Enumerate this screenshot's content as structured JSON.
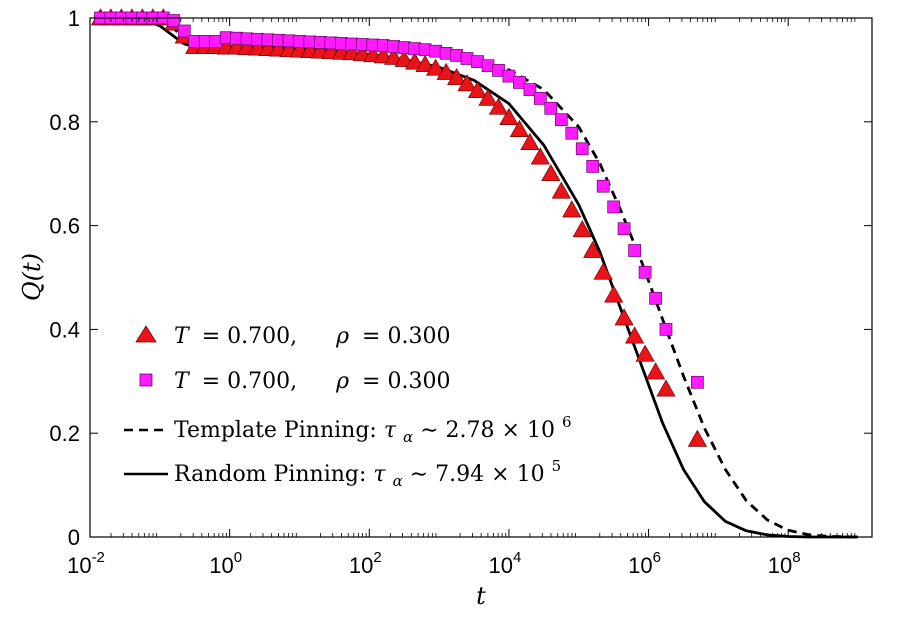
{
  "chart_data": {
    "type": "scatter",
    "xscale": "log",
    "xlim_log10": [
      -2,
      9.2
    ],
    "ylim": [
      0,
      1
    ],
    "xlabel": "t",
    "ylabel": "Q(t)",
    "x_ticks": [
      {
        "base": "10",
        "exp": "-2",
        "log10": -2
      },
      {
        "base": "10",
        "exp": "0",
        "log10": 0
      },
      {
        "base": "10",
        "exp": "2",
        "log10": 2
      },
      {
        "base": "10",
        "exp": "4",
        "log10": 4
      },
      {
        "base": "10",
        "exp": "6",
        "log10": 6
      },
      {
        "base": "10",
        "exp": "8",
        "log10": 8
      }
    ],
    "y_ticks": [
      {
        "label": "0",
        "value": 0
      },
      {
        "label": "0.2",
        "value": 0.2
      },
      {
        "label": "0.4",
        "value": 0.4
      },
      {
        "label": "0.6",
        "value": 0.6
      },
      {
        "label": "0.8",
        "value": 0.8
      },
      {
        "label": "1",
        "value": 1
      }
    ],
    "series": [
      {
        "name": "T = 0.700,  ρ = 0.300 (triangles)",
        "marker": "triangle",
        "color": "#e8141a",
        "log10_t": [
          -1.85,
          -1.7,
          -1.55,
          -1.4,
          -1.25,
          -1.1,
          -0.95,
          -0.8,
          -0.65,
          -0.5,
          -0.35,
          -0.2,
          -0.05,
          0.1,
          0.25,
          0.4,
          0.55,
          0.7,
          0.85,
          1.0,
          1.15,
          1.3,
          1.45,
          1.6,
          1.75,
          1.9,
          2.05,
          2.2,
          2.35,
          2.5,
          2.65,
          2.8,
          2.95,
          3.1,
          3.25,
          3.4,
          3.55,
          3.7,
          3.85,
          4.0,
          4.15,
          4.3,
          4.45,
          4.6,
          4.75,
          4.9,
          5.05,
          5.2,
          5.35,
          5.5,
          5.65,
          5.8,
          5.95,
          6.1,
          6.25,
          6.7
        ],
        "values": [
          1.0,
          1.0,
          1.0,
          1.0,
          1.0,
          1.0,
          1.0,
          0.99,
          0.965,
          0.945,
          0.945,
          0.945,
          0.944,
          0.944,
          0.943,
          0.942,
          0.941,
          0.94,
          0.939,
          0.938,
          0.937,
          0.936,
          0.935,
          0.934,
          0.933,
          0.931,
          0.929,
          0.927,
          0.924,
          0.92,
          0.915,
          0.91,
          0.903,
          0.895,
          0.885,
          0.873,
          0.86,
          0.845,
          0.828,
          0.808,
          0.785,
          0.76,
          0.732,
          0.7,
          0.666,
          0.63,
          0.592,
          0.552,
          0.51,
          0.466,
          0.422,
          0.387,
          0.352,
          0.318,
          0.285,
          0.188
        ]
      },
      {
        "name": "T = 0.700,  ρ = 0.300 (squares)",
        "marker": "square",
        "color": "#ff1aff",
        "log10_t": [
          -1.85,
          -1.7,
          -1.55,
          -1.4,
          -1.25,
          -1.1,
          -0.95,
          -0.8,
          -0.65,
          -0.5,
          -0.35,
          -0.2,
          -0.05,
          0.1,
          0.25,
          0.4,
          0.55,
          0.7,
          0.85,
          1.0,
          1.15,
          1.3,
          1.45,
          1.6,
          1.75,
          1.9,
          2.05,
          2.2,
          2.35,
          2.5,
          2.65,
          2.8,
          2.95,
          3.1,
          3.25,
          3.4,
          3.55,
          3.7,
          3.85,
          4.0,
          4.15,
          4.3,
          4.45,
          4.6,
          4.75,
          4.9,
          5.05,
          5.2,
          5.35,
          5.5,
          5.65,
          5.8,
          5.95,
          6.1,
          6.25,
          6.7
        ],
        "values": [
          1.0,
          1.0,
          1.0,
          1.0,
          1.0,
          1.0,
          1.0,
          0.995,
          0.975,
          0.955,
          0.955,
          0.955,
          0.962,
          0.961,
          0.96,
          0.959,
          0.958,
          0.957,
          0.956,
          0.955,
          0.954,
          0.953,
          0.952,
          0.951,
          0.95,
          0.949,
          0.948,
          0.947,
          0.945,
          0.943,
          0.941,
          0.939,
          0.936,
          0.932,
          0.928,
          0.922,
          0.916,
          0.908,
          0.899,
          0.888,
          0.876,
          0.862,
          0.845,
          0.826,
          0.804,
          0.778,
          0.748,
          0.714,
          0.676,
          0.636,
          0.594,
          0.552,
          0.51,
          0.46,
          0.4,
          0.298
        ]
      }
    ],
    "curves": [
      {
        "name": "Template Pinning",
        "style": "dashed",
        "color": "#000000",
        "log10_t": [
          -1.9,
          -1.5,
          -1.2,
          -1.0,
          -0.8,
          -0.65,
          -0.5,
          -0.3,
          0.0,
          0.5,
          1.0,
          1.5,
          2.0,
          2.5,
          3.0,
          3.5,
          4.0,
          4.5,
          5.0,
          5.3,
          5.6,
          5.9,
          6.2,
          6.5,
          6.8,
          7.1,
          7.4,
          7.7,
          8.0,
          8.3,
          8.6,
          9.0
        ],
        "values": [
          1.0,
          1.0,
          1.0,
          0.995,
          0.98,
          0.96,
          0.952,
          0.952,
          0.952,
          0.95,
          0.948,
          0.945,
          0.942,
          0.938,
          0.932,
          0.92,
          0.9,
          0.862,
          0.79,
          0.72,
          0.63,
          0.53,
          0.42,
          0.31,
          0.21,
          0.13,
          0.07,
          0.033,
          0.013,
          0.004,
          0.001,
          0.0
        ]
      },
      {
        "name": "Random Pinning",
        "style": "solid",
        "color": "#000000",
        "log10_t": [
          -1.9,
          -1.5,
          -1.2,
          -1.0,
          -0.8,
          -0.65,
          -0.5,
          -0.3,
          0.0,
          0.5,
          1.0,
          1.5,
          2.0,
          2.5,
          3.0,
          3.5,
          4.0,
          4.5,
          5.0,
          5.3,
          5.6,
          5.9,
          6.2,
          6.5,
          6.8,
          7.1,
          7.4,
          7.7,
          8.0,
          8.3,
          8.6,
          9.0
        ],
        "values": [
          1.0,
          1.0,
          0.995,
          0.985,
          0.965,
          0.95,
          0.945,
          0.945,
          0.945,
          0.943,
          0.94,
          0.936,
          0.93,
          0.92,
          0.905,
          0.88,
          0.835,
          0.755,
          0.64,
          0.55,
          0.44,
          0.33,
          0.22,
          0.13,
          0.068,
          0.03,
          0.012,
          0.004,
          0.001,
          0.0,
          0.0,
          0.0
        ]
      }
    ],
    "legend": {
      "placement": "lower-left",
      "entries": [
        {
          "marker": "triangle",
          "t_sym": "T",
          "t_val": "= 0.700,",
          "rho_sym": "ρ",
          "rho_val": "= 0.300"
        },
        {
          "marker": "square",
          "t_sym": "T",
          "t_val": "= 0.700,",
          "rho_sym": "ρ",
          "rho_val": "= 0.300"
        },
        {
          "line": "dashed",
          "text": "Template Pinning: ",
          "tau": "τ",
          "tau_sub": "α",
          "rel": " ∼ 2.78 × 10",
          "exp": "6"
        },
        {
          "line": "solid",
          "text": "Random Pinning: ",
          "tau": "τ",
          "tau_sub": "α",
          "rel": " ∼ 7.94 × 10",
          "exp": "5"
        }
      ]
    }
  }
}
